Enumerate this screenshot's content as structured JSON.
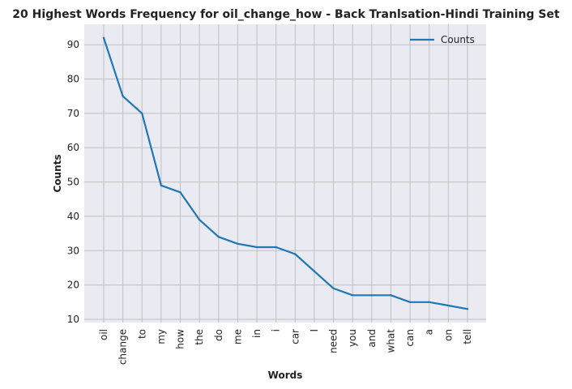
{
  "chart_data": {
    "type": "line",
    "title": "20 Highest Words Frequency for oil_change_how - Back Tranlsation-Hindi Training Set",
    "xlabel": "Words",
    "ylabel": "Counts",
    "categories": [
      "oil",
      "change",
      "to",
      "my",
      "how",
      "the",
      "do",
      "me",
      "in",
      "i",
      "car",
      "I",
      "need",
      "you",
      "and",
      "what",
      "can",
      "a",
      "on",
      "tell"
    ],
    "series": [
      {
        "name": "Counts",
        "values": [
          92,
          75,
          70,
          49,
          47,
          39,
          34,
          32,
          31,
          31,
          29,
          24,
          19,
          17,
          17,
          17,
          15,
          15,
          14,
          13
        ]
      }
    ],
    "ylim": [
      9.05,
      95.95
    ],
    "yticks": [
      10,
      20,
      30,
      40,
      50,
      60,
      70,
      80,
      90
    ],
    "grid": true,
    "legend": "top-right",
    "colors": {
      "line": "#1f77b4",
      "plot_bg": "#eaeaf2",
      "grid": "#c0c0c0"
    }
  }
}
